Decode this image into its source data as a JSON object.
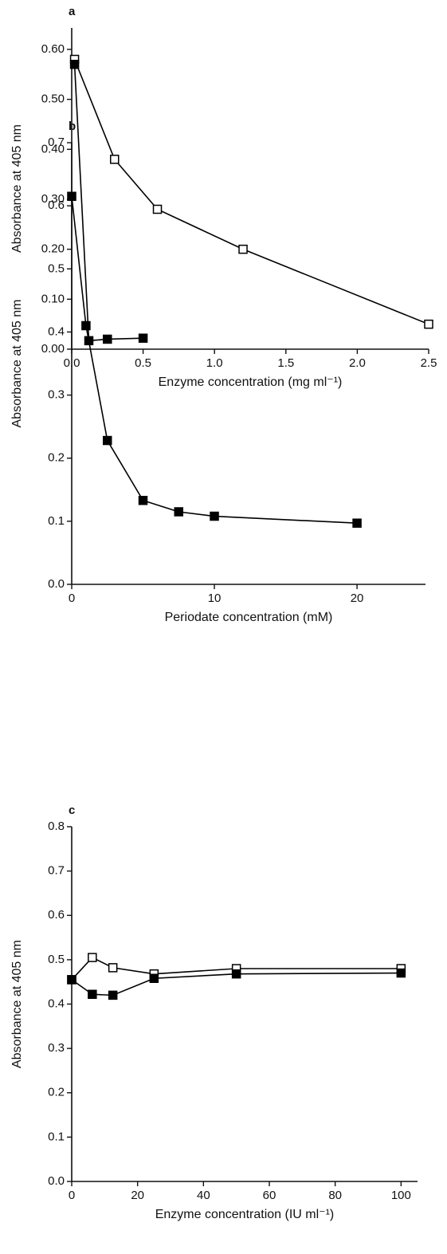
{
  "chart_data": [
    {
      "type": "line",
      "label": "a",
      "xlabel": "Enzyme concentration (mg ml⁻¹)",
      "ylabel": "Absorbance at 405 nm",
      "xlim": [
        0,
        2.5
      ],
      "ylim": [
        0,
        0.643
      ],
      "xticks": [
        {
          "value": 0,
          "label": "0.0"
        },
        {
          "value": 0.5,
          "label": "0.5"
        },
        {
          "value": 1,
          "label": "1.0"
        },
        {
          "value": 1.5,
          "label": "1.5"
        },
        {
          "value": 2,
          "label": "2.0"
        },
        {
          "value": 2.5,
          "label": "2.5"
        }
      ],
      "yticks": [
        {
          "value": 0,
          "label": "0.00"
        },
        {
          "value": 0.1,
          "label": "0.10"
        },
        {
          "value": 0.2,
          "label": "0.20"
        },
        {
          "value": 0.3,
          "label": "0.30"
        },
        {
          "value": 0.4,
          "label": "0.40"
        },
        {
          "value": 0.5,
          "label": "0.50"
        },
        {
          "value": 0.6,
          "label": "0.60"
        }
      ],
      "series": [
        {
          "marker": "open",
          "color": "#000000",
          "x": [
            0.02,
            0.3,
            0.6,
            1.2,
            2.5
          ],
          "values": [
            0.58,
            0.38,
            0.28,
            0.2,
            0.05
          ]
        },
        {
          "marker": "filled",
          "color": "#000000",
          "x": [
            0.02,
            0.12,
            0.25,
            0.5
          ],
          "values": [
            0.57,
            0.017,
            0.02,
            0.022
          ]
        }
      ]
    },
    {
      "type": "line",
      "label": "b",
      "xlabel": "Periodate concentration (mM)",
      "ylabel": "Absorbance at 405 nm",
      "xlim": [
        0,
        24.8
      ],
      "ylim": [
        0,
        0.7
      ],
      "xticks": [
        0,
        10,
        20
      ],
      "yticks": [
        {
          "value": 0,
          "label": "0.0"
        },
        0.1,
        0.2,
        0.3,
        0.4,
        0.5,
        0.6,
        0.7
      ],
      "series": [
        {
          "marker": "filled",
          "color": "#000000",
          "x": [
            0,
            1,
            2.5,
            5,
            7.5,
            10,
            20
          ],
          "values": [
            0.615,
            0.41,
            0.228,
            0.133,
            0.115,
            0.108,
            0.097
          ]
        }
      ]
    },
    {
      "type": "line",
      "label": "c",
      "xlabel": "Enzyme concentration (IU ml⁻¹)",
      "ylabel": "Absorbance at 405 nm",
      "xlim": [
        0,
        105
      ],
      "ylim": [
        0,
        0.8
      ],
      "xticks": [
        0,
        20,
        40,
        60,
        80,
        100
      ],
      "yticks": [
        {
          "value": 0,
          "label": "0.0"
        },
        0.1,
        0.2,
        0.3,
        0.4,
        0.5,
        0.6,
        0.7,
        0.8
      ],
      "series": [
        {
          "marker": "open",
          "color": "#000000",
          "x": [
            0,
            6.25,
            12.5,
            25,
            50,
            100
          ],
          "values": [
            0.455,
            0.505,
            0.482,
            0.468,
            0.48,
            0.48
          ]
        },
        {
          "marker": "filled",
          "color": "#000000",
          "x": [
            0,
            6.25,
            12.5,
            25,
            50,
            100
          ],
          "values": [
            0.455,
            0.422,
            0.42,
            0.458,
            0.468,
            0.47
          ]
        }
      ]
    }
  ]
}
